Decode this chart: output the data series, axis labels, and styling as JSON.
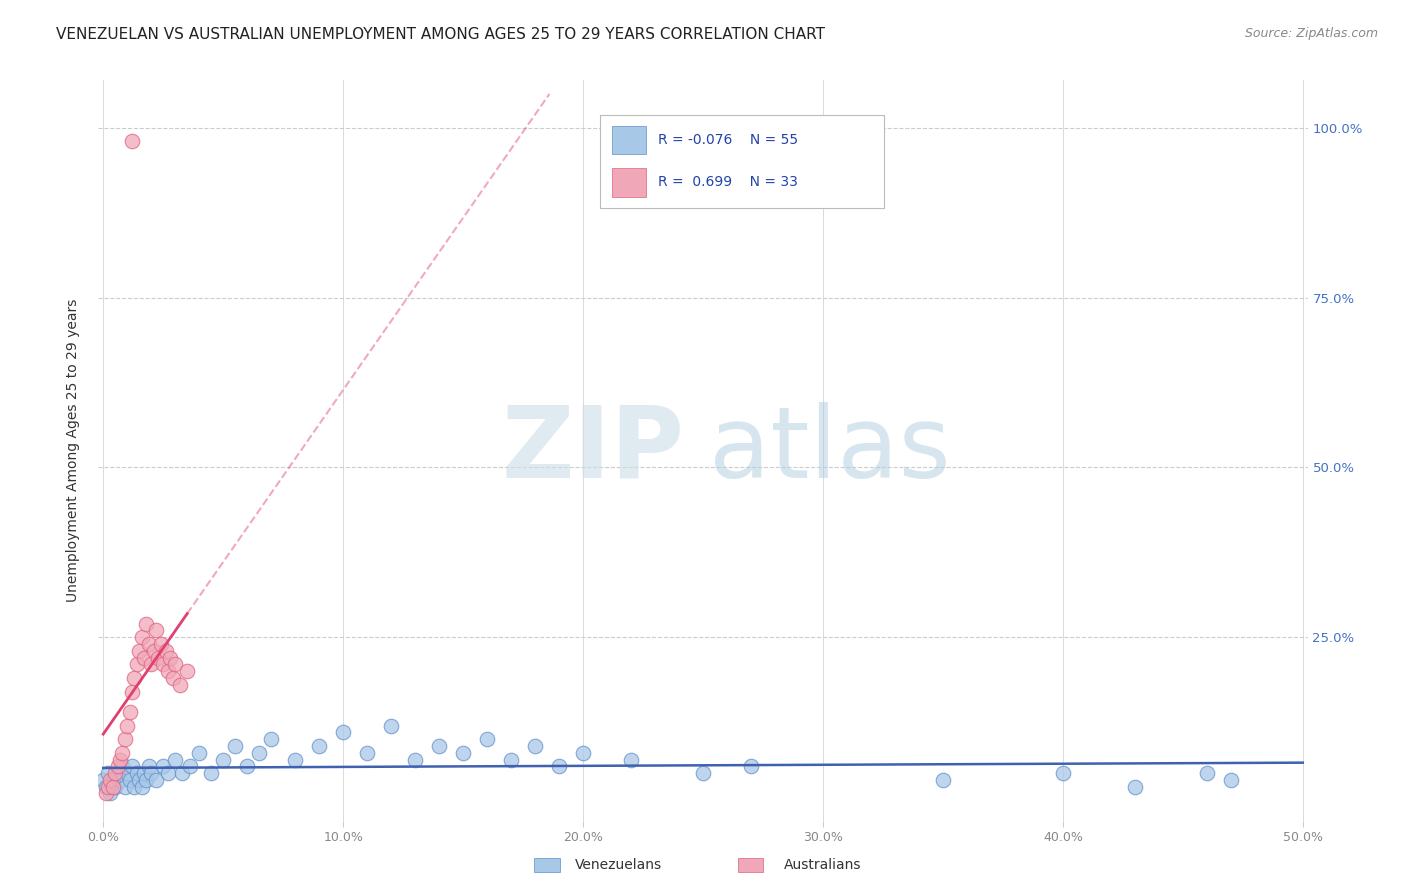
{
  "title": "VENEZUELAN VS AUSTRALIAN UNEMPLOYMENT AMONG AGES 25 TO 29 YEARS CORRELATION CHART",
  "source": "Source: ZipAtlas.com",
  "ylabel": "Unemployment Among Ages 25 to 29 years",
  "xlim": [
    0.0,
    0.5
  ],
  "ylim": [
    0.0,
    1.05
  ],
  "xtick_vals": [
    0.0,
    0.1,
    0.2,
    0.3,
    0.4,
    0.5
  ],
  "xtick_labels": [
    "0.0%",
    "10.0%",
    "20.0%",
    "30.0%",
    "40.0%",
    "50.0%"
  ],
  "ytick_vals": [
    0.25,
    0.5,
    0.75,
    1.0
  ],
  "ytick_labels": [
    "25.0%",
    "50.0%",
    "75.0%",
    "100.0%"
  ],
  "legend_R_blue": "-0.076",
  "legend_N_blue": "55",
  "legend_R_pink": "0.699",
  "legend_N_pink": "33",
  "blue_scatter_color": "#a8c8e8",
  "blue_edge_color": "#6090c8",
  "pink_scatter_color": "#f0a8b8",
  "pink_edge_color": "#e06080",
  "blue_line_color": "#4060b0",
  "pink_line_color": "#e04070",
  "grid_color": "#cccccc",
  "title_color": "#222222",
  "source_color": "#888888",
  "label_color": "#333333",
  "tick_color": "#888888",
  "right_tick_color": "#4472c4",
  "watermark_ZIP_color": "#ccdde8",
  "watermark_atlas_color": "#b0cce0",
  "ven_x": [
    0.0,
    0.001,
    0.002,
    0.003,
    0.004,
    0.005,
    0.006,
    0.007,
    0.008,
    0.009,
    0.01,
    0.011,
    0.012,
    0.013,
    0.014,
    0.015,
    0.016,
    0.017,
    0.018,
    0.019,
    0.02,
    0.022,
    0.025,
    0.027,
    0.03,
    0.033,
    0.036,
    0.04,
    0.045,
    0.05,
    0.055,
    0.06,
    0.065,
    0.07,
    0.08,
    0.09,
    0.1,
    0.11,
    0.12,
    0.13,
    0.14,
    0.15,
    0.16,
    0.17,
    0.18,
    0.19,
    0.2,
    0.22,
    0.25,
    0.27,
    0.35,
    0.4,
    0.43,
    0.46,
    0.47
  ],
  "ven_y": [
    0.04,
    0.03,
    0.05,
    0.02,
    0.04,
    0.03,
    0.05,
    0.04,
    0.06,
    0.03,
    0.05,
    0.04,
    0.06,
    0.03,
    0.05,
    0.04,
    0.03,
    0.05,
    0.04,
    0.06,
    0.05,
    0.04,
    0.06,
    0.05,
    0.07,
    0.05,
    0.06,
    0.08,
    0.05,
    0.07,
    0.09,
    0.06,
    0.08,
    0.1,
    0.07,
    0.09,
    0.11,
    0.08,
    0.12,
    0.07,
    0.09,
    0.08,
    0.1,
    0.07,
    0.09,
    0.06,
    0.08,
    0.07,
    0.05,
    0.06,
    0.04,
    0.05,
    0.03,
    0.05,
    0.04
  ],
  "aus_x": [
    0.001,
    0.002,
    0.003,
    0.004,
    0.005,
    0.006,
    0.007,
    0.008,
    0.009,
    0.01,
    0.011,
    0.012,
    0.013,
    0.014,
    0.015,
    0.016,
    0.017,
    0.018,
    0.019,
    0.02,
    0.021,
    0.022,
    0.023,
    0.024,
    0.025,
    0.026,
    0.027,
    0.028,
    0.029,
    0.03,
    0.032,
    0.035,
    0.012
  ],
  "aus_y": [
    0.02,
    0.03,
    0.04,
    0.03,
    0.05,
    0.06,
    0.07,
    0.08,
    0.1,
    0.12,
    0.14,
    0.17,
    0.19,
    0.21,
    0.23,
    0.25,
    0.22,
    0.27,
    0.24,
    0.21,
    0.23,
    0.26,
    0.22,
    0.24,
    0.21,
    0.23,
    0.2,
    0.22,
    0.19,
    0.21,
    0.18,
    0.2,
    0.98
  ]
}
